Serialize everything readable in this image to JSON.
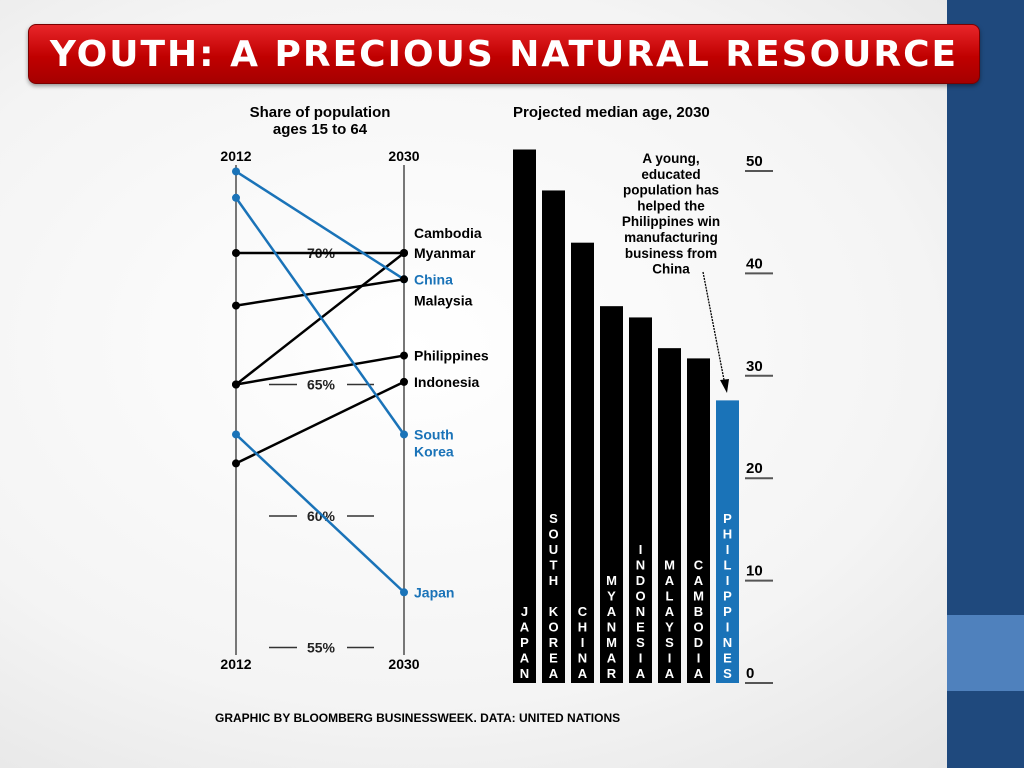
{
  "slide": {
    "title": "YOUTH: A PRECIOUS NATURAL RESOURCE",
    "source": "GRAPHIC BY BLOOMBERG BUSINESSWEEK. DATA: UNITED NATIONS"
  },
  "colors": {
    "accent_blue": "#1a73b8",
    "black": "#000000",
    "title_red": "#c00000",
    "sidebar": "#1f497d",
    "sidebar_accent": "#4f81bd"
  },
  "chart_data": [
    {
      "type": "line",
      "title": "Share of population ages 15 to 64",
      "x": [
        "2012",
        "2030"
      ],
      "y_ticks": [
        "70%",
        "65%",
        "60%",
        "55%"
      ],
      "y_tick_values": [
        70,
        65,
        60,
        55
      ],
      "ylim": [
        54,
        74
      ],
      "series": [
        {
          "name": "Cambodia",
          "values": [
            65.0,
            70.0
          ],
          "color": "#000000"
        },
        {
          "name": "Myanmar",
          "values": [
            70.0,
            70.0
          ],
          "color": "#000000"
        },
        {
          "name": "China",
          "values": [
            73.1,
            69.0
          ],
          "color": "#1a73b8"
        },
        {
          "name": "Malaysia",
          "values": [
            68.0,
            69.0
          ],
          "color": "#000000"
        },
        {
          "name": "Philippines",
          "values": [
            65.0,
            66.1
          ],
          "color": "#000000"
        },
        {
          "name": "Indonesia",
          "values": [
            62.0,
            65.1
          ],
          "color": "#000000"
        },
        {
          "name": "South Korea",
          "values": [
            72.1,
            63.1
          ],
          "color": "#1a73b8"
        },
        {
          "name": "Japan",
          "values": [
            63.1,
            57.1
          ],
          "color": "#1a73b8"
        }
      ]
    },
    {
      "type": "bar",
      "title": "Projected median age, 2030",
      "categories": [
        "JAPAN",
        "SOUTH KOREA",
        "CHINA",
        "MYANMAR",
        "INDONESIA",
        "MALAYSIA",
        "CAMBODIA",
        "PHILIPPINES"
      ],
      "values": [
        52.1,
        48.1,
        43.0,
        36.8,
        35.7,
        32.7,
        31.7,
        27.6
      ],
      "highlight": "PHILIPPINES",
      "y_ticks": [
        "50",
        "40",
        "30",
        "20",
        "10",
        "0"
      ],
      "ylim": [
        0,
        50
      ],
      "annotation": "A young, educated population has helped the Philippines win manufacturing business from China"
    }
  ]
}
